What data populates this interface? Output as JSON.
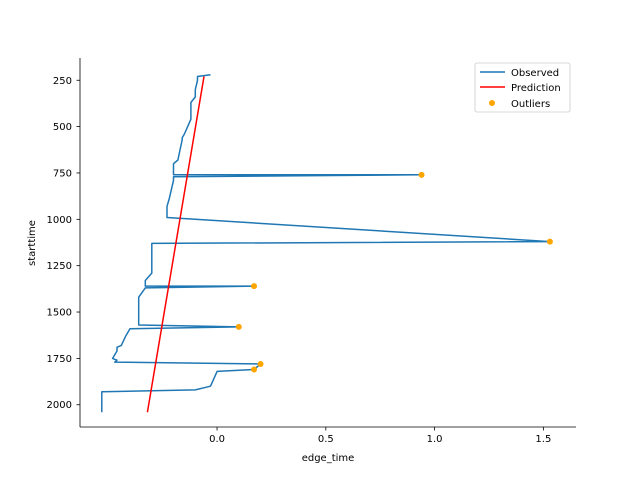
{
  "chart_data": {
    "type": "line",
    "xlabel": "edge_time",
    "ylabel": "starttime",
    "xlim": [
      -0.63,
      1.65
    ],
    "ylim": [
      2120,
      130
    ],
    "y_inverted": true,
    "x_ticks": [
      0.0,
      0.5,
      1.0,
      1.5
    ],
    "x_tick_labels": [
      "0.0",
      "0.5",
      "1.0",
      "1.5"
    ],
    "y_ticks": [
      250,
      500,
      750,
      1000,
      1250,
      1500,
      1750,
      2000
    ],
    "y_tick_labels": [
      "250",
      "500",
      "750",
      "1000",
      "1250",
      "1500",
      "1750",
      "2000"
    ],
    "grid": false,
    "legend_position": "top-right",
    "colors": {
      "observed": "#1f77b4",
      "prediction": "#ff0000",
      "outliers": "#ffa500"
    },
    "series": [
      {
        "name": "Observed",
        "kind": "line",
        "x": [
          -0.03,
          -0.09,
          -0.09,
          -0.1,
          -0.1,
          -0.12,
          -0.12,
          -0.15,
          -0.16,
          -0.16,
          -0.18,
          -0.2,
          -0.2,
          0.94,
          -0.2,
          -0.2,
          -0.22,
          -0.23,
          -0.23,
          1.53,
          -0.3,
          -0.3,
          -0.33,
          -0.33,
          0.17,
          -0.33,
          -0.36,
          -0.36,
          0.1,
          -0.4,
          -0.42,
          -0.44,
          -0.46,
          -0.46,
          -0.48,
          -0.46,
          -0.47,
          0.2,
          0.17,
          0.0,
          -0.03,
          -0.1,
          -0.53,
          -0.53
        ],
        "y": [
          220,
          230,
          250,
          300,
          340,
          370,
          460,
          540,
          560,
          570,
          680,
          700,
          760,
          760,
          770,
          790,
          890,
          930,
          990,
          1120,
          1130,
          1290,
          1330,
          1360,
          1360,
          1370,
          1420,
          1570,
          1580,
          1590,
          1630,
          1680,
          1690,
          1710,
          1750,
          1760,
          1770,
          1780,
          1810,
          1820,
          1900,
          1920,
          1930,
          2040
        ]
      },
      {
        "name": "Prediction",
        "kind": "line",
        "x": [
          -0.06,
          -0.32
        ],
        "y": [
          230,
          2040
        ]
      },
      {
        "name": "Outliers",
        "kind": "scatter",
        "x": [
          0.94,
          1.53,
          0.17,
          0.1,
          0.2,
          0.17
        ],
        "y": [
          760,
          1120,
          1360,
          1580,
          1780,
          1810
        ]
      }
    ]
  }
}
